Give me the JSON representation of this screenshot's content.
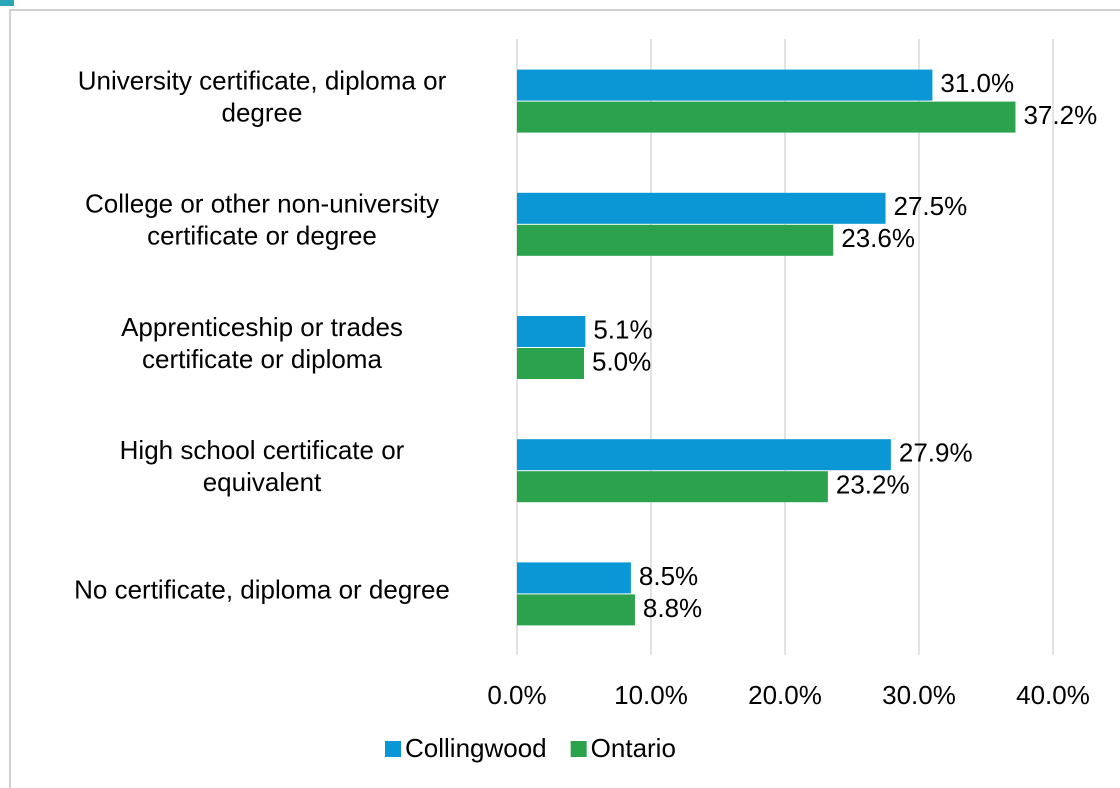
{
  "chart_data": {
    "type": "hbar",
    "categories": [
      [
        "University certificate, diploma or",
        "degree"
      ],
      [
        "College or other non-university",
        "certificate or degree"
      ],
      [
        "Apprenticeship or trades",
        "certificate or diploma"
      ],
      [
        "High school certificate or",
        "equivalent"
      ],
      [
        "No certificate, diploma or degree"
      ]
    ],
    "series": [
      {
        "name": "Collingwood",
        "color": "#0b96d6",
        "values": [
          31.0,
          27.5,
          5.1,
          27.9,
          8.5
        ],
        "value_labels": [
          "31.0%",
          "27.5%",
          "5.1%",
          "27.9%",
          "8.5%"
        ]
      },
      {
        "name": "Ontario",
        "color": "#2ba24c",
        "values": [
          37.2,
          23.6,
          5.0,
          23.2,
          8.8
        ],
        "value_labels": [
          "37.2%",
          "23.6%",
          "5.0%",
          "23.2%",
          "8.8%"
        ]
      }
    ],
    "xlim": [
      0,
      40
    ],
    "xticks": [
      {
        "value": 0,
        "label": "0.0%"
      },
      {
        "value": 10,
        "label": "10.0%"
      },
      {
        "value": 20,
        "label": "20.0%"
      },
      {
        "value": 30,
        "label": "30.0%"
      },
      {
        "value": 40,
        "label": "40.0%"
      }
    ],
    "grid": true,
    "legend": "bottom"
  }
}
